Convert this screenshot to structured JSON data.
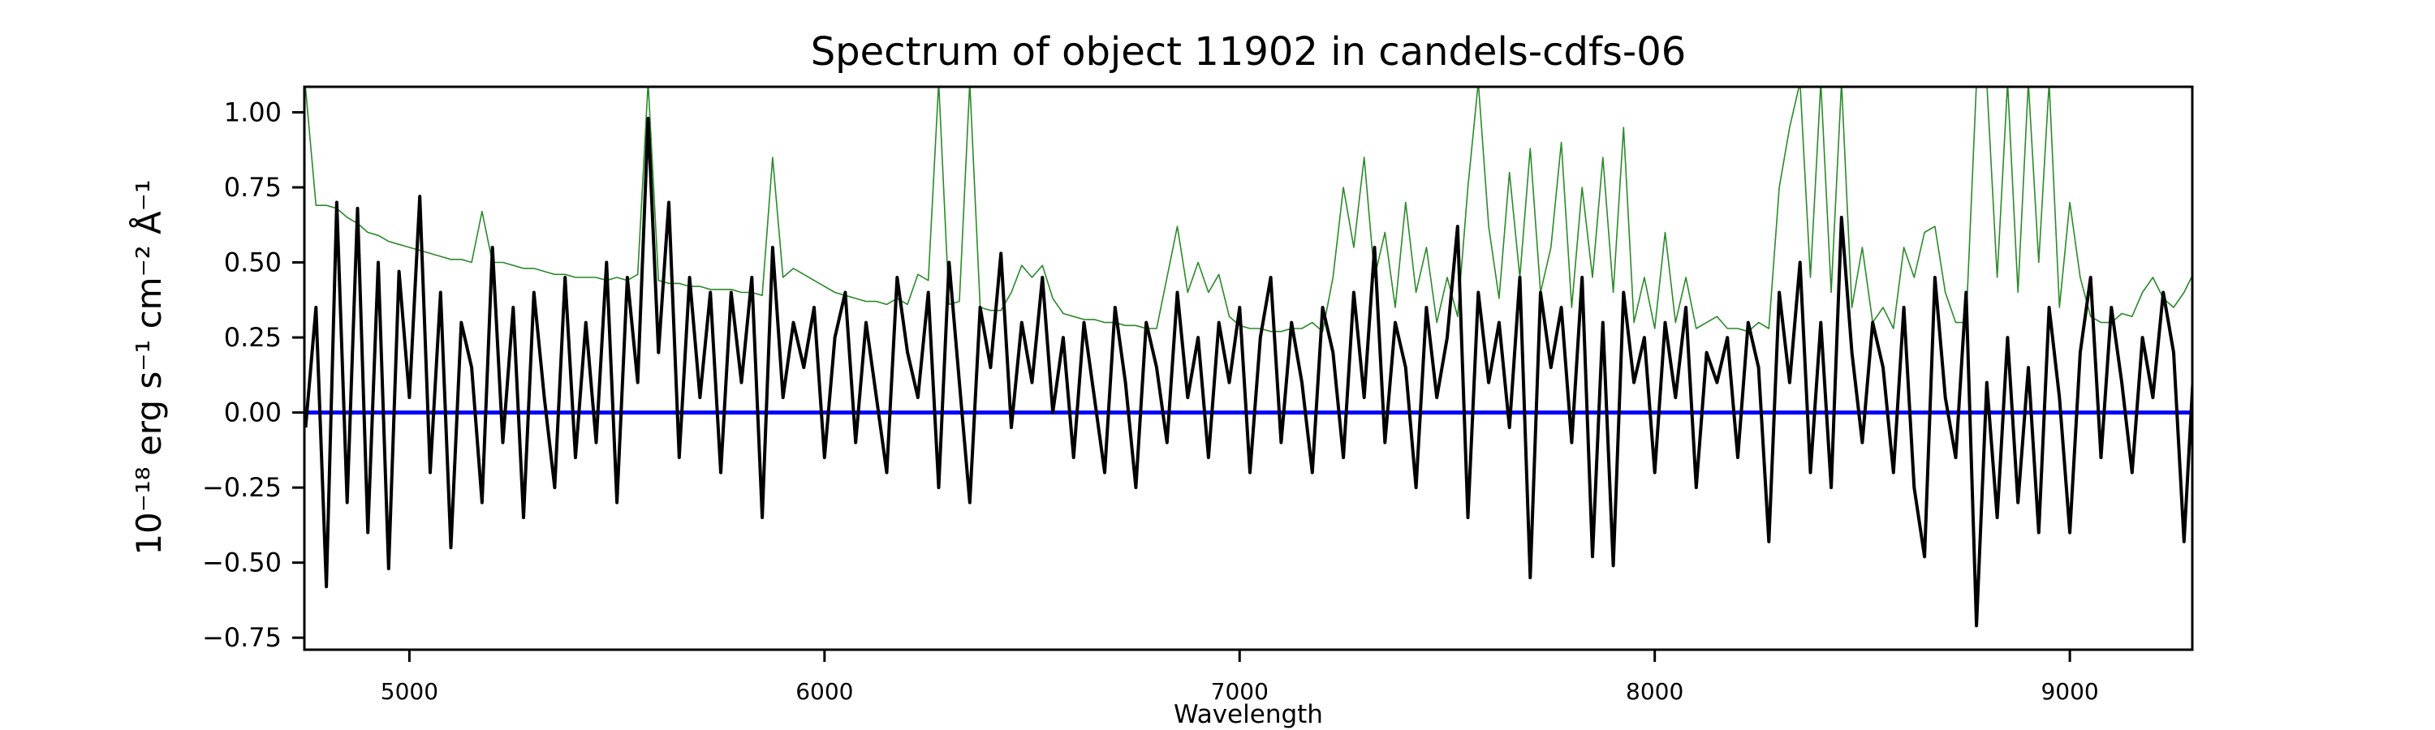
{
  "chart_data": {
    "type": "line",
    "title": "Spectrum of object 11902 in candels-cdfs-06",
    "xlabel": "Wavelength",
    "ylabel": "10⁻¹⁸ erg s⁻¹ cm⁻² Å⁻¹",
    "xlim": [
      4747,
      9295
    ],
    "ylim": [
      -0.79,
      1.085
    ],
    "xticks": [
      5000,
      6000,
      7000,
      8000,
      9000
    ],
    "xtick_labels": [
      "5000",
      "6000",
      "7000",
      "8000",
      "9000"
    ],
    "yticks": [
      1.0,
      0.75,
      0.5,
      0.25,
      0.0,
      -0.25,
      -0.5,
      -0.75
    ],
    "ytick_labels": [
      "1.00",
      "0.75",
      "0.50",
      "0.25",
      "0.00",
      "−0.25",
      "−0.50",
      "−0.75"
    ],
    "grid": false,
    "legend": "none",
    "x": [
      4750,
      4775,
      4800,
      4825,
      4850,
      4875,
      4900,
      4925,
      4950,
      4975,
      5000,
      5025,
      5050,
      5075,
      5100,
      5125,
      5150,
      5175,
      5200,
      5225,
      5250,
      5275,
      5300,
      5325,
      5350,
      5375,
      5400,
      5425,
      5450,
      5475,
      5500,
      5525,
      5550,
      5575,
      5600,
      5625,
      5650,
      5675,
      5700,
      5725,
      5750,
      5775,
      5800,
      5825,
      5850,
      5875,
      5900,
      5925,
      5950,
      5975,
      6000,
      6025,
      6050,
      6075,
      6100,
      6125,
      6150,
      6175,
      6200,
      6225,
      6250,
      6275,
      6300,
      6325,
      6350,
      6375,
      6400,
      6425,
      6450,
      6475,
      6500,
      6525,
      6550,
      6575,
      6600,
      6625,
      6650,
      6675,
      6700,
      6725,
      6750,
      6775,
      6800,
      6825,
      6850,
      6875,
      6900,
      6925,
      6950,
      6975,
      7000,
      7025,
      7050,
      7075,
      7100,
      7125,
      7150,
      7175,
      7200,
      7225,
      7250,
      7275,
      7300,
      7325,
      7350,
      7375,
      7400,
      7425,
      7450,
      7475,
      7500,
      7525,
      7550,
      7575,
      7600,
      7625,
      7650,
      7675,
      7700,
      7725,
      7750,
      7775,
      7800,
      7825,
      7850,
      7875,
      7900,
      7925,
      7950,
      7975,
      8000,
      8025,
      8050,
      8075,
      8100,
      8125,
      8150,
      8175,
      8200,
      8225,
      8250,
      8275,
      8300,
      8325,
      8350,
      8375,
      8400,
      8425,
      8450,
      8475,
      8500,
      8525,
      8550,
      8575,
      8600,
      8625,
      8650,
      8675,
      8700,
      8725,
      8750,
      8775,
      8800,
      8825,
      8850,
      8875,
      8900,
      8925,
      8950,
      8975,
      9000,
      9025,
      9050,
      9075,
      9100,
      9125,
      9150,
      9175,
      9200,
      9225,
      9250,
      9275,
      9300
    ],
    "series": [
      {
        "color": "#2a8a2a",
        "values": [
          1.08,
          0.69,
          0.69,
          0.68,
          0.65,
          0.63,
          0.6,
          0.59,
          0.57,
          0.56,
          0.55,
          0.54,
          0.53,
          0.52,
          0.51,
          0.51,
          0.5,
          0.67,
          0.5,
          0.5,
          0.49,
          0.48,
          0.48,
          0.47,
          0.46,
          0.46,
          0.45,
          0.45,
          0.45,
          0.44,
          0.45,
          0.44,
          0.46,
          1.1,
          0.44,
          0.43,
          0.43,
          0.42,
          0.42,
          0.41,
          0.41,
          0.41,
          0.4,
          0.4,
          0.39,
          0.85,
          0.45,
          0.48,
          0.46,
          0.44,
          0.42,
          0.4,
          0.39,
          0.38,
          0.37,
          0.37,
          0.36,
          0.38,
          0.36,
          0.46,
          0.44,
          1.1,
          0.36,
          0.37,
          1.1,
          0.35,
          0.34,
          0.34,
          0.4,
          0.49,
          0.45,
          0.49,
          0.38,
          0.33,
          0.32,
          0.31,
          0.31,
          0.3,
          0.3,
          0.29,
          0.29,
          0.28,
          0.28,
          0.45,
          0.62,
          0.4,
          0.5,
          0.4,
          0.46,
          0.32,
          0.29,
          0.28,
          0.28,
          0.27,
          0.27,
          0.28,
          0.28,
          0.3,
          0.27,
          0.45,
          0.75,
          0.55,
          0.85,
          0.45,
          0.6,
          0.35,
          0.7,
          0.4,
          0.55,
          0.3,
          0.45,
          0.32,
          0.75,
          1.1,
          0.62,
          0.38,
          0.8,
          0.45,
          0.88,
          0.4,
          0.55,
          0.9,
          0.35,
          0.75,
          0.45,
          0.85,
          0.4,
          0.95,
          0.3,
          0.45,
          0.28,
          0.6,
          0.3,
          0.45,
          0.28,
          0.3,
          0.32,
          0.28,
          0.28,
          0.27,
          0.3,
          0.28,
          0.75,
          0.95,
          1.1,
          0.45,
          1.1,
          0.4,
          1.1,
          0.35,
          0.55,
          0.3,
          0.35,
          0.28,
          0.55,
          0.45,
          0.6,
          0.62,
          0.4,
          0.3,
          0.3,
          1.1,
          1.1,
          0.45,
          1.1,
          0.4,
          1.1,
          0.5,
          1.1,
          0.35,
          0.7,
          0.45,
          0.32,
          0.3,
          0.3,
          0.33,
          0.32,
          0.4,
          0.45,
          0.38,
          0.35,
          0.4,
          0.47
        ]
      },
      {
        "color": "#000000",
        "values": [
          -0.05,
          0.35,
          -0.58,
          0.7,
          -0.3,
          0.68,
          -0.4,
          0.5,
          -0.52,
          0.47,
          0.05,
          0.72,
          -0.2,
          0.4,
          -0.45,
          0.3,
          0.15,
          -0.3,
          0.55,
          -0.1,
          0.35,
          -0.35,
          0.4,
          0.05,
          -0.25,
          0.45,
          -0.15,
          0.3,
          -0.1,
          0.5,
          -0.3,
          0.45,
          0.1,
          0.98,
          0.2,
          0.7,
          -0.15,
          0.45,
          0.05,
          0.4,
          -0.2,
          0.4,
          0.1,
          0.45,
          -0.35,
          0.55,
          0.05,
          0.3,
          0.15,
          0.35,
          -0.15,
          0.25,
          0.4,
          -0.1,
          0.3,
          0.05,
          -0.2,
          0.45,
          0.2,
          0.05,
          0.4,
          -0.25,
          0.5,
          0.1,
          -0.3,
          0.35,
          0.15,
          0.53,
          -0.05,
          0.3,
          0.1,
          0.45,
          0.0,
          0.25,
          -0.15,
          0.3,
          0.05,
          -0.2,
          0.35,
          0.1,
          -0.25,
          0.3,
          0.15,
          -0.1,
          0.4,
          0.05,
          0.25,
          -0.15,
          0.3,
          0.1,
          0.35,
          -0.2,
          0.25,
          0.45,
          -0.1,
          0.3,
          0.1,
          -0.2,
          0.35,
          0.2,
          -0.15,
          0.4,
          0.05,
          0.55,
          -0.1,
          0.3,
          0.15,
          -0.25,
          0.35,
          0.05,
          0.25,
          0.62,
          -0.35,
          0.4,
          0.1,
          0.3,
          -0.05,
          0.45,
          -0.55,
          0.4,
          0.15,
          0.35,
          -0.1,
          0.45,
          -0.48,
          0.3,
          -0.51,
          0.4,
          0.1,
          0.25,
          -0.2,
          0.3,
          0.05,
          0.35,
          -0.25,
          0.2,
          0.1,
          0.25,
          -0.15,
          0.3,
          0.15,
          -0.43,
          0.4,
          0.1,
          0.5,
          -0.2,
          0.3,
          -0.25,
          0.65,
          0.2,
          -0.1,
          0.3,
          0.15,
          -0.2,
          0.35,
          -0.25,
          -0.48,
          0.45,
          0.05,
          -0.15,
          0.4,
          -0.71,
          0.1,
          -0.35,
          0.25,
          -0.3,
          0.15,
          -0.4,
          0.35,
          0.05,
          -0.4,
          0.2,
          0.45,
          -0.15,
          0.35,
          0.1,
          -0.2,
          0.25,
          0.05,
          0.4,
          0.2,
          -0.43,
          0.2
        ]
      }
    ],
    "hline": {
      "y": 0.0,
      "color": "#0000ff"
    }
  }
}
